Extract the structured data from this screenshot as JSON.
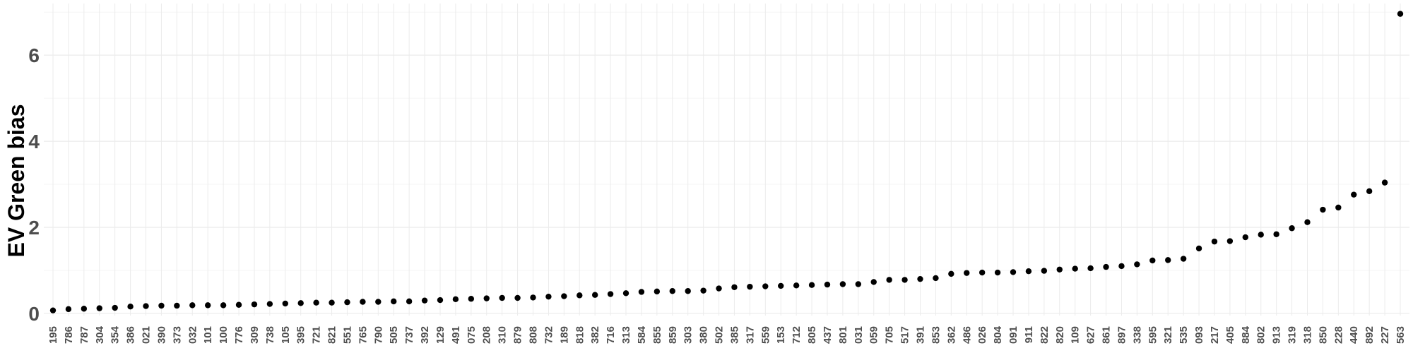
{
  "colors": {
    "background": "#ffffff",
    "grid_major": "#ebebeb",
    "grid_minor": "#f5f5f5",
    "point": "#000000",
    "tick_text": "#4d4d4d"
  },
  "chart_data": {
    "type": "scatter",
    "title": "",
    "xlabel": "",
    "ylabel": "EV Green bias",
    "ylim": [
      -0.05,
      7.2
    ],
    "yticks": [
      0,
      2,
      4,
      6
    ],
    "grid": true,
    "legend": "none",
    "categories": [
      "195",
      "786",
      "787",
      "304",
      "354",
      "386",
      "021",
      "390",
      "373",
      "032",
      "101",
      "100",
      "776",
      "309",
      "738",
      "105",
      "395",
      "721",
      "821",
      "551",
      "765",
      "790",
      "505",
      "737",
      "392",
      "129",
      "491",
      "075",
      "208",
      "310",
      "879",
      "808",
      "732",
      "189",
      "818",
      "382",
      "716",
      "313",
      "584",
      "855",
      "859",
      "303",
      "380",
      "502",
      "385",
      "317",
      "559",
      "153",
      "712",
      "805",
      "437",
      "801",
      "031",
      "059",
      "705",
      "517",
      "391",
      "853",
      "362",
      "486",
      "026",
      "804",
      "091",
      "911",
      "822",
      "820",
      "109",
      "627",
      "861",
      "897",
      "338",
      "595",
      "321",
      "535",
      "093",
      "217",
      "405",
      "884",
      "802",
      "913",
      "319",
      "318",
      "850",
      "228",
      "440",
      "892",
      "227",
      "563"
    ],
    "values": [
      0.07,
      0.1,
      0.11,
      0.12,
      0.13,
      0.16,
      0.17,
      0.18,
      0.18,
      0.19,
      0.19,
      0.19,
      0.2,
      0.21,
      0.22,
      0.23,
      0.24,
      0.25,
      0.25,
      0.26,
      0.27,
      0.27,
      0.28,
      0.28,
      0.3,
      0.31,
      0.33,
      0.34,
      0.35,
      0.36,
      0.36,
      0.37,
      0.39,
      0.4,
      0.42,
      0.43,
      0.45,
      0.47,
      0.5,
      0.51,
      0.52,
      0.52,
      0.53,
      0.58,
      0.61,
      0.62,
      0.63,
      0.64,
      0.65,
      0.66,
      0.67,
      0.68,
      0.68,
      0.73,
      0.78,
      0.78,
      0.8,
      0.82,
      0.92,
      0.94,
      0.95,
      0.95,
      0.96,
      0.98,
      0.99,
      1.02,
      1.04,
      1.05,
      1.08,
      1.1,
      1.14,
      1.23,
      1.24,
      1.27,
      1.51,
      1.67,
      1.68,
      1.77,
      1.83,
      1.84,
      1.98,
      2.12,
      2.41,
      2.46,
      2.76,
      2.84,
      3.04,
      6.96
    ]
  }
}
